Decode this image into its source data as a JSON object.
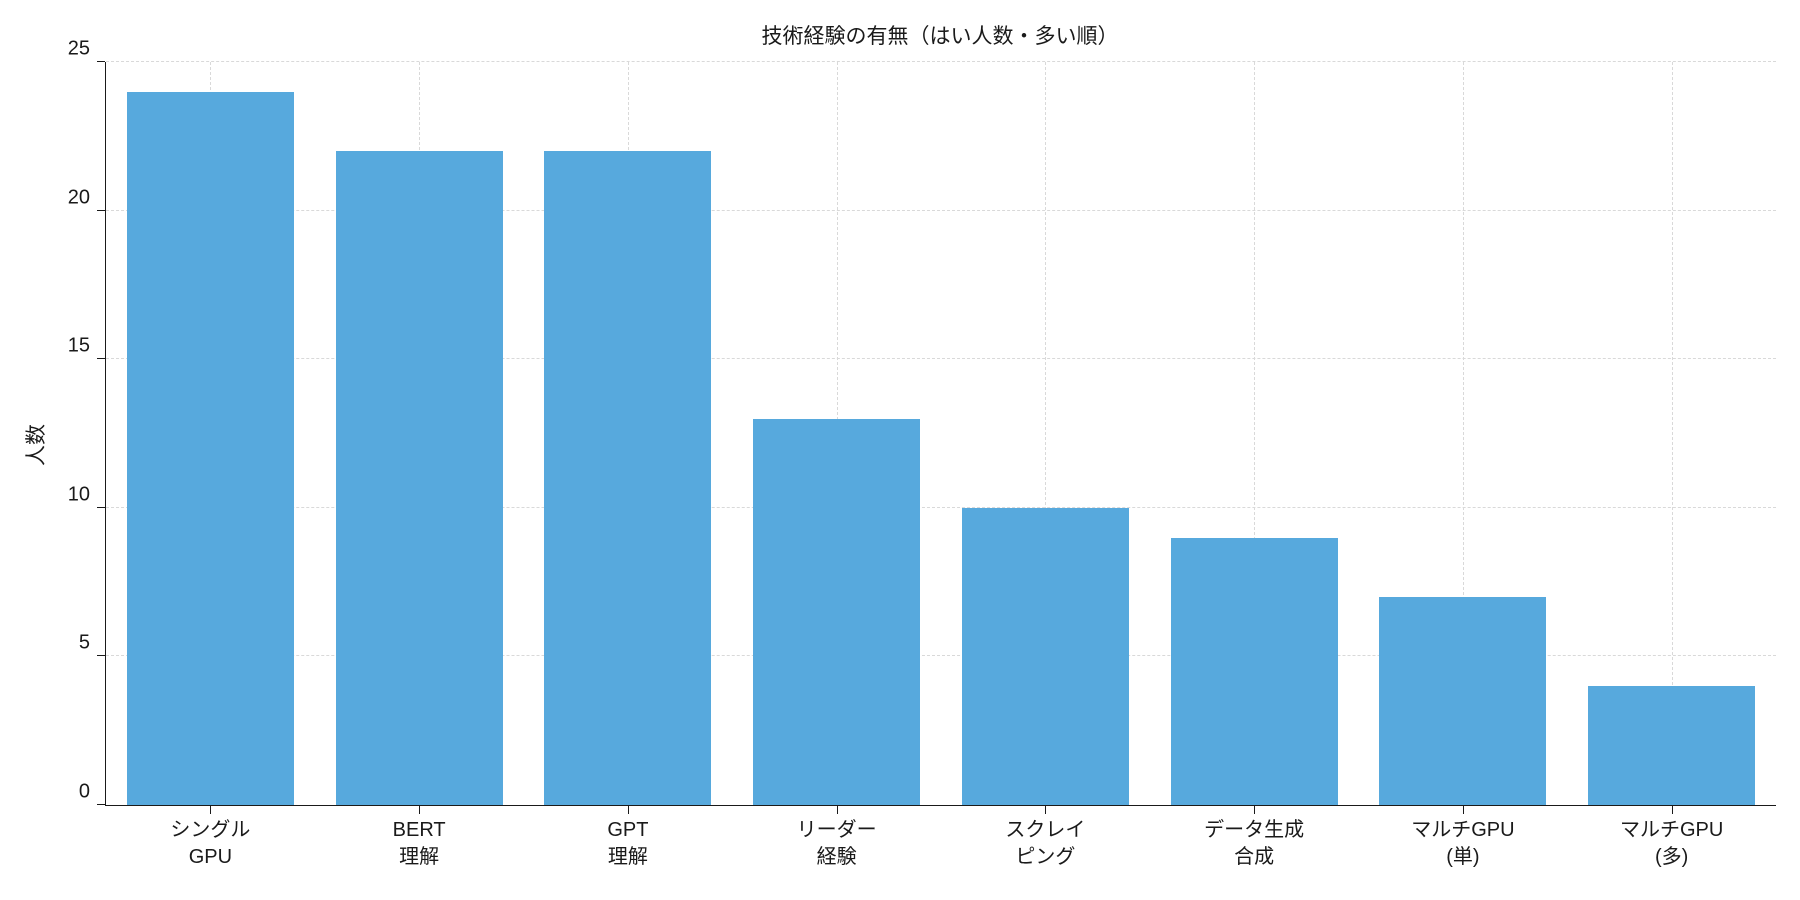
{
  "chart_data": {
    "type": "bar",
    "title": "技術経験の有無（はい人数・多い順）",
    "ylabel": "人数",
    "xlabel": "",
    "categories": [
      "シングル\nGPU",
      "BERT\n理解",
      "GPT\n理解",
      "リーダー\n経験",
      "スクレイ\nピング",
      "データ生成\n合成",
      "マルチGPU\n(単)",
      "マルチGPU\n(多)"
    ],
    "values": [
      24,
      22,
      22,
      13,
      10,
      9,
      7,
      4
    ],
    "ylim": [
      0,
      25
    ],
    "yticks": [
      0,
      5,
      10,
      15,
      20,
      25
    ],
    "grid": "dashed, horizontal and vertical",
    "legend": "none",
    "bar_color": "#57a9dd",
    "axis_color": "#1a1a1a",
    "grid_color": "#d9d9d9",
    "background_color": "#ffffff",
    "bar_width_fraction": 0.8
  }
}
